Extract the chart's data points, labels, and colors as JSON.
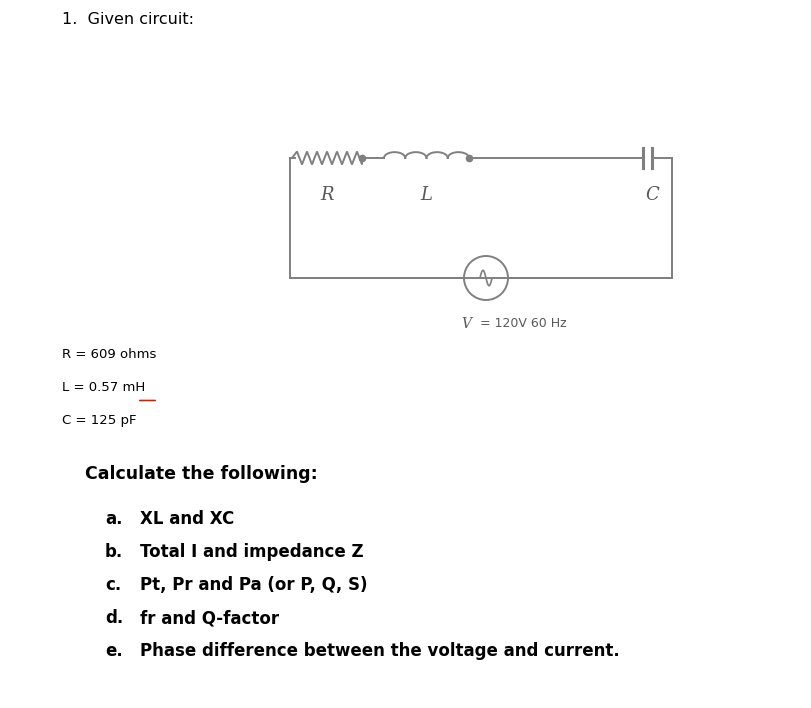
{
  "title": "1.  Given circuit:",
  "background_color": "#ffffff",
  "R_label": "R = 609 ohms",
  "L_label_prefix": "L = 0.57 ",
  "L_label_unit": "mH",
  "C_label": "C = 125 pF",
  "calc_header": "Calculate the following:",
  "items": [
    [
      "a.",
      "XL and XC"
    ],
    [
      "b.",
      "Total I and impedance Z"
    ],
    [
      "c.",
      "Pt, Pr and Pa (or P, Q, S)"
    ],
    [
      "d.",
      "fr and Q-factor"
    ],
    [
      "e.",
      "Phase difference between the voltage and current."
    ]
  ],
  "V_label_italic": "V",
  "V_label_rest": " = 120V 60 Hz",
  "circuit_labels": [
    "R",
    "L",
    "C"
  ],
  "circuit_color": "#808080",
  "underline_color": "#cc2200",
  "text_color": "#000000",
  "label_color": "#595959",
  "fig_width": 8.11,
  "fig_height": 7.08
}
